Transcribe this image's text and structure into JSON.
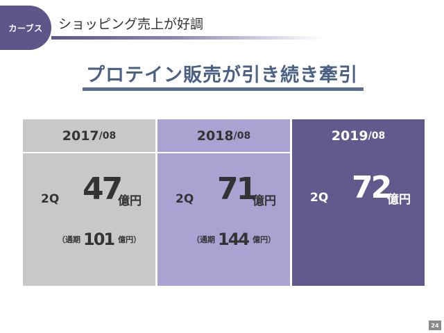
{
  "header": {
    "badge": "カーブス",
    "title": "ショッピング売上が好調"
  },
  "headline": "プロテイン販売が引き続き牽引",
  "columns": [
    {
      "year": "2017",
      "month": "/08",
      "quarter": "2Q",
      "value": "47",
      "unit": "億円",
      "annual_open": "（通期",
      "annual_value": "101",
      "annual_close": "億円）"
    },
    {
      "year": "2018",
      "month": "/08",
      "quarter": "2Q",
      "value": "71",
      "unit": "億円",
      "annual_open": "（通期",
      "annual_value": "144",
      "annual_close": "億円）"
    },
    {
      "year": "2019",
      "month": "/08",
      "quarter": "2Q",
      "value": "72",
      "unit": "億円"
    }
  ],
  "page_number": "24",
  "colors": {
    "accent": "#5e5589",
    "headline": "#4a6184",
    "col1": "#c8c8c8",
    "col2": "#a8a3d1",
    "col3": "#625a8c"
  }
}
